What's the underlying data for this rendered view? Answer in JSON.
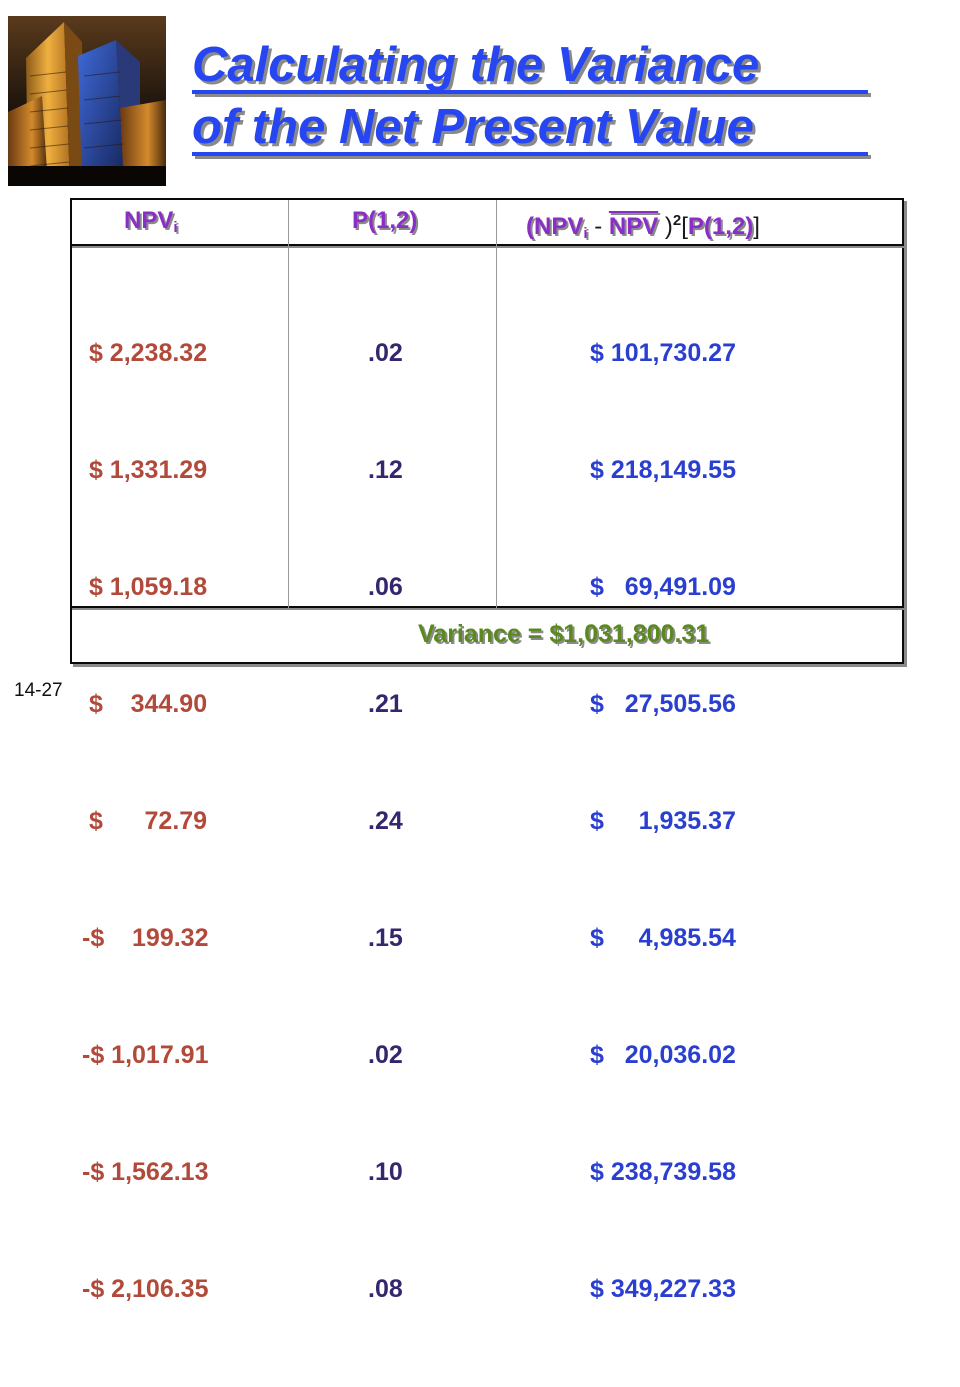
{
  "title": {
    "line1": "Calculating the Variance",
    "line2": "of the Net Present Value"
  },
  "table": {
    "headers": {
      "npv_main": "NPV",
      "npv_sub": "i",
      "prob": "P(1,2)",
      "f_open": "(",
      "f_npv": "NPV",
      "f_sub": "i",
      "f_minus": " - ",
      "f_npvbar": "NPV",
      "f_close": " )",
      "f_sup": "2",
      "f_lbr": "[",
      "f_prob": "P(1,2)",
      "f_rbr": "]"
    },
    "rows": [
      {
        "npv": " $ 2,238.32",
        "p": ".02",
        "v": "$ 101,730.27"
      },
      {
        "npv": " $ 1,331.29",
        "p": ".12",
        "v": "$ 218,149.55"
      },
      {
        "npv": " $ 1,059.18",
        "p": ".06",
        "v": "$   69,491.09"
      },
      {
        "npv": " $    344.90",
        "p": ".21",
        "v": "$   27,505.56"
      },
      {
        "npv": " $      72.79",
        "p": ".24",
        "v": "$     1,935.37"
      },
      {
        "npv": "-$    199.32",
        "p": ".15",
        "v": "$     4,985.54"
      },
      {
        "npv": "-$ 1,017.91",
        "p": ".02",
        "v": "$   20,036.02"
      },
      {
        "npv": "-$ 1,562.13",
        "p": ".10",
        "v": "$ 238,739.58"
      },
      {
        "npv": "-$ 2,106.35",
        "p": ".08",
        "v": "$ 349,227.33"
      }
    ],
    "variance": "Variance = $1,031,800.31"
  },
  "slide_number": "14-27",
  "colors": {
    "title": "#2546f0",
    "header": "#8b2ec8",
    "npv_values": "#b14a3a",
    "prob_values": "#35266d",
    "weighted_values": "#2a3fd0",
    "variance": "#5a8a1e"
  }
}
